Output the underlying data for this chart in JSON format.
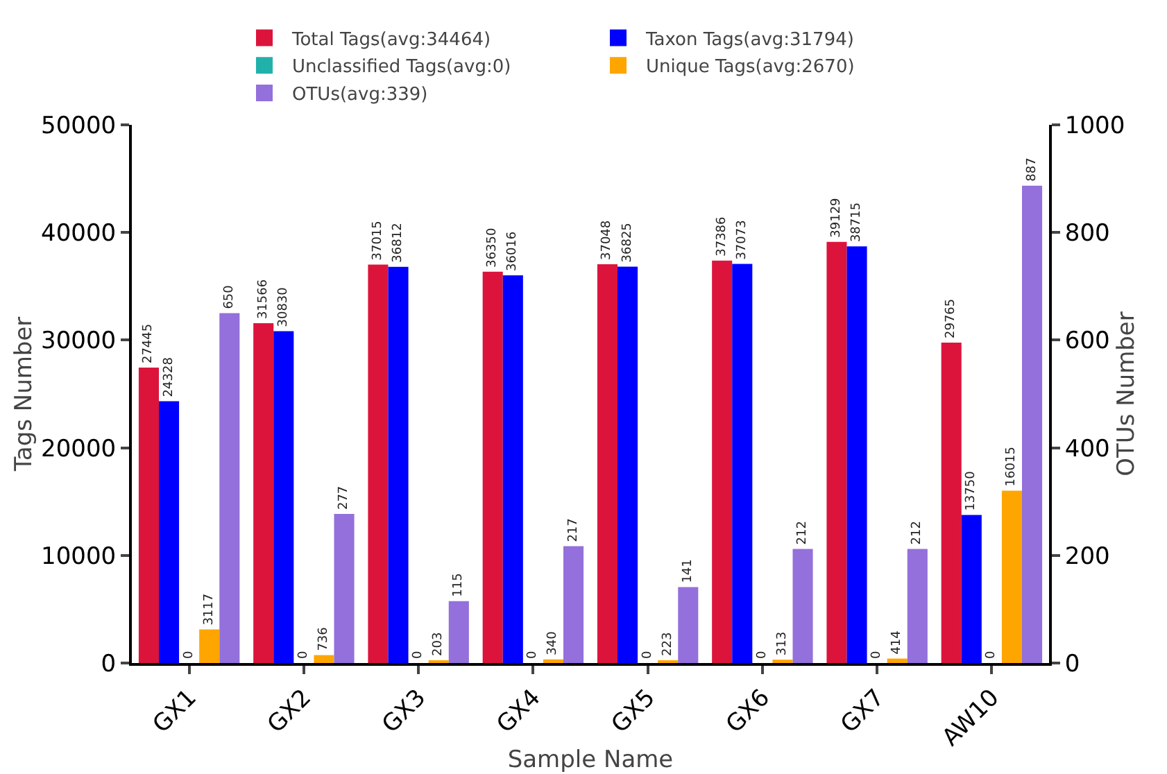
{
  "chart_data": {
    "type": "bar",
    "xlabel": "Sample Name",
    "ylabel": "Tags Number",
    "y2label": "OTUs Number",
    "categories": [
      "GX1",
      "GX2",
      "GX3",
      "GX4",
      "GX5",
      "GX6",
      "GX7",
      "AW10"
    ],
    "series": [
      {
        "name": "Total Tags(avg:34464)",
        "color": "#dc143c",
        "values": [
          27445,
          31566,
          37015,
          36350,
          37048,
          37386,
          39129,
          29765
        ]
      },
      {
        "name": "Taxon Tags(avg:31794)",
        "color": "#0000ff",
        "values": [
          24328,
          30830,
          36812,
          36016,
          36825,
          37073,
          38715,
          13750
        ]
      },
      {
        "name": "Unclassified Tags(avg:0)",
        "color": "#20b2aa",
        "values": [
          0,
          0,
          0,
          0,
          0,
          0,
          0,
          0
        ]
      },
      {
        "name": "Unique Tags(avg:2670)",
        "color": "#ffa500",
        "values": [
          3117,
          736,
          203,
          340,
          223,
          313,
          414,
          16015
        ]
      },
      {
        "name": "OTUs(avg:339)",
        "color": "#9370db",
        "axis": "y2",
        "values": [
          650,
          277,
          115,
          217,
          141,
          212,
          212,
          887
        ]
      }
    ],
    "ylim": [
      0,
      50000
    ],
    "yticks": [
      0,
      10000,
      20000,
      30000,
      40000,
      50000
    ],
    "y2lim": [
      0,
      1000
    ],
    "y2ticks": [
      0,
      200,
      400,
      600,
      800,
      1000
    ],
    "data_labels": true,
    "grid": false,
    "legend": "top"
  }
}
